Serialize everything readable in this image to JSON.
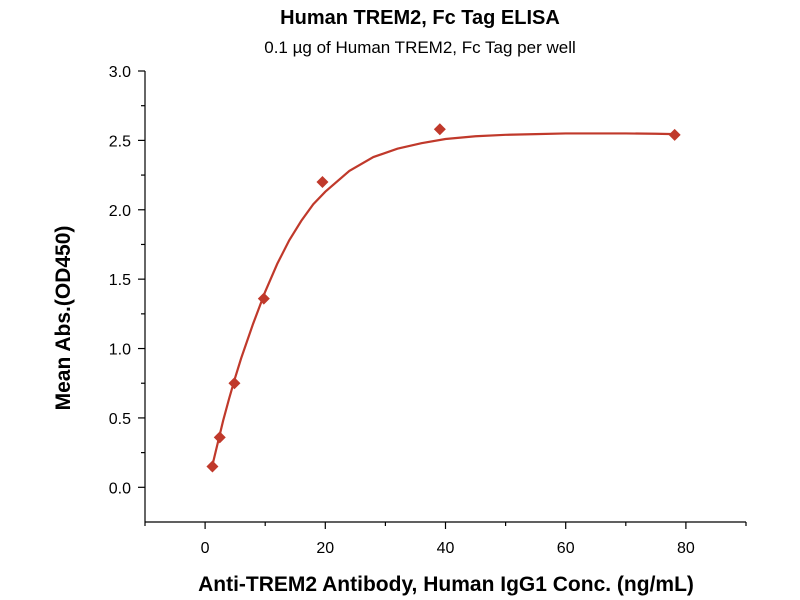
{
  "chart_data": {
    "type": "scatter",
    "title": "Human TREM2, Fc Tag ELISA",
    "subtitle": "0.1 µg of Human TREM2, Fc Tag per well",
    "xlabel": "Anti-TREM2 Antibody, Human IgG1 Conc. (ng/mL)",
    "ylabel": "Mean Abs.(OD450)",
    "xlim": [
      -10,
      90
    ],
    "ylim": [
      -0.25,
      3.0
    ],
    "xticks": [
      0,
      20,
      40,
      60,
      80
    ],
    "xtick_labels": [
      "0",
      "20",
      "40",
      "60",
      "80"
    ],
    "yticks": [
      0.0,
      0.5,
      1.0,
      1.5,
      2.0,
      2.5,
      3.0
    ],
    "ytick_labels": [
      "0.0",
      "0.5",
      "1.0",
      "1.5",
      "2.0",
      "2.5",
      "3.0"
    ],
    "grid": false,
    "legend": "none",
    "series": [
      {
        "marker": "diamond",
        "color": "#c0392b",
        "x": [
          1.22,
          2.44,
          4.88,
          9.77,
          19.53,
          39.06,
          78.13
        ],
        "y": [
          0.15,
          0.36,
          0.75,
          1.36,
          2.2,
          2.58,
          2.54
        ]
      }
    ],
    "fit_curve": {
      "color": "#c0392b",
      "x": [
        1,
        2,
        3,
        4,
        5,
        6,
        8,
        10,
        12,
        14,
        16,
        18,
        20,
        24,
        28,
        32,
        36,
        40,
        45,
        50,
        55,
        60,
        65,
        70,
        75,
        78.13
      ],
      "y": [
        0.12,
        0.3,
        0.48,
        0.64,
        0.79,
        0.93,
        1.18,
        1.41,
        1.61,
        1.78,
        1.92,
        2.04,
        2.13,
        2.28,
        2.38,
        2.44,
        2.48,
        2.51,
        2.53,
        2.54,
        2.545,
        2.55,
        2.55,
        2.55,
        2.548,
        2.545
      ]
    }
  }
}
